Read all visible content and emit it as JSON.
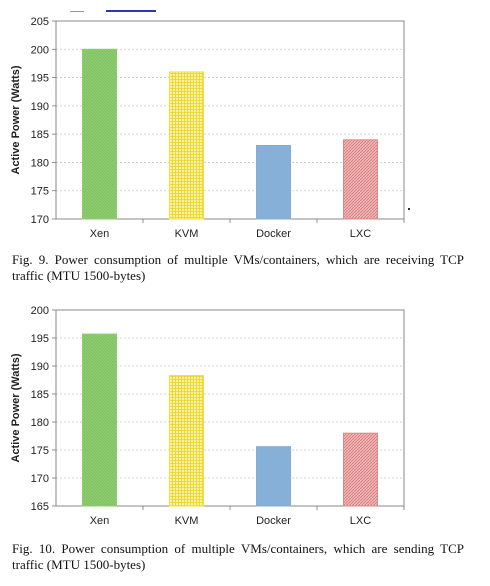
{
  "chart_data": [
    {
      "type": "bar",
      "categories": [
        "Xen",
        "KVM",
        "Docker",
        "LXC"
      ],
      "values": [
        200,
        196,
        183,
        184
      ],
      "ylabel": "Active Power (Watts)",
      "ylim": [
        170,
        205
      ],
      "yticks": [
        170,
        175,
        180,
        185,
        190,
        195,
        200,
        205
      ],
      "grid": true,
      "colors": [
        "#8ccc6e",
        "#f4e23c",
        "#82add6",
        "#dd8888"
      ],
      "caption": "Fig. 9.  Power consumption of multiple VMs/containers, which are receiving TCP traffic (MTU 1500-bytes)"
    },
    {
      "type": "bar",
      "categories": [
        "Xen",
        "KVM",
        "Docker",
        "LXC"
      ],
      "values": [
        195.7,
        188.3,
        175.6,
        178.0
      ],
      "ylabel": "Active Power (Watts)",
      "ylim": [
        165,
        200
      ],
      "yticks": [
        165,
        170,
        175,
        180,
        185,
        190,
        195,
        200
      ],
      "grid": true,
      "colors": [
        "#8ccc6e",
        "#f4e23c",
        "#82add6",
        "#dd8888"
      ],
      "caption": "Fig. 10. Power consumption of multiple VMs/containers, which are sending TCP traffic (MTU 1500-bytes)"
    }
  ]
}
